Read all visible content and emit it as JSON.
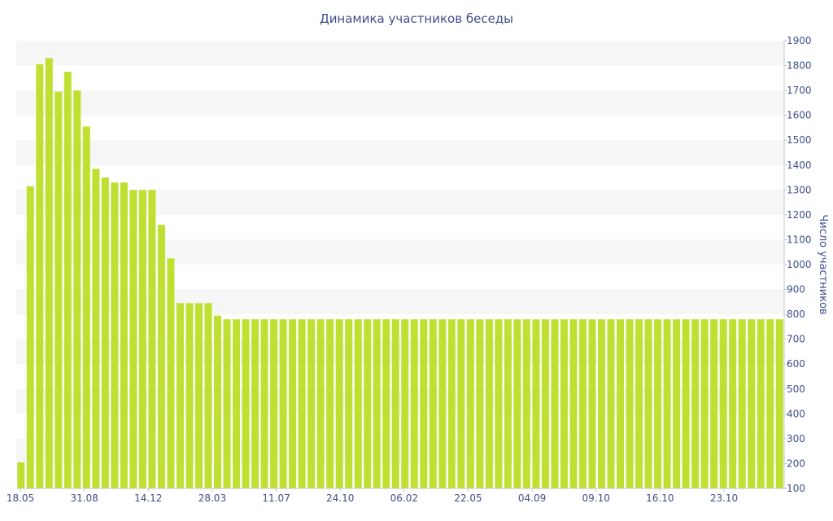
{
  "chart_data": {
    "type": "bar",
    "title": "Динамика участников беседы",
    "xlabel": "",
    "ylabel": "Число участников",
    "ylim": [
      100,
      1900
    ],
    "yticks": [
      "100",
      "200",
      "300",
      "400",
      "500",
      "600",
      "700",
      "800",
      "900",
      "1000",
      "1100",
      "1200",
      "1300",
      "1400",
      "1500",
      "1600",
      "1700",
      "1800",
      "1900"
    ],
    "x_tick_labels": [
      "18.05",
      "31.08",
      "14.12",
      "28.03",
      "11.07",
      "24.10",
      "06.02",
      "22.05",
      "04.09",
      "09.10",
      "16.10",
      "23.10"
    ],
    "series": [
      {
        "values": [
          205,
          1315,
          1805,
          1830,
          1695,
          1775,
          1700,
          1555,
          1385,
          1350,
          1330,
          1330,
          1300,
          1300,
          1300,
          1160,
          1025,
          845,
          845,
          845,
          845,
          795,
          780,
          780,
          780,
          780,
          780,
          780,
          780,
          780,
          780,
          780,
          780,
          780,
          780,
          780,
          780,
          780,
          780,
          780,
          780,
          780,
          780,
          780,
          780,
          780,
          780,
          780,
          780,
          780,
          780,
          780,
          780,
          780,
          780,
          780,
          780,
          780,
          780,
          780,
          780,
          780,
          780,
          780,
          780,
          780,
          780,
          780,
          780,
          780,
          780,
          780,
          780,
          780,
          780,
          780,
          780,
          780,
          780,
          780,
          780,
          780
        ]
      }
    ],
    "colors": {
      "bar": "#bfe030",
      "text": "#3f4f8a",
      "band": "#f6f6f6"
    },
    "grid": "alternating horizontal bands",
    "y_axis_position": "right"
  }
}
